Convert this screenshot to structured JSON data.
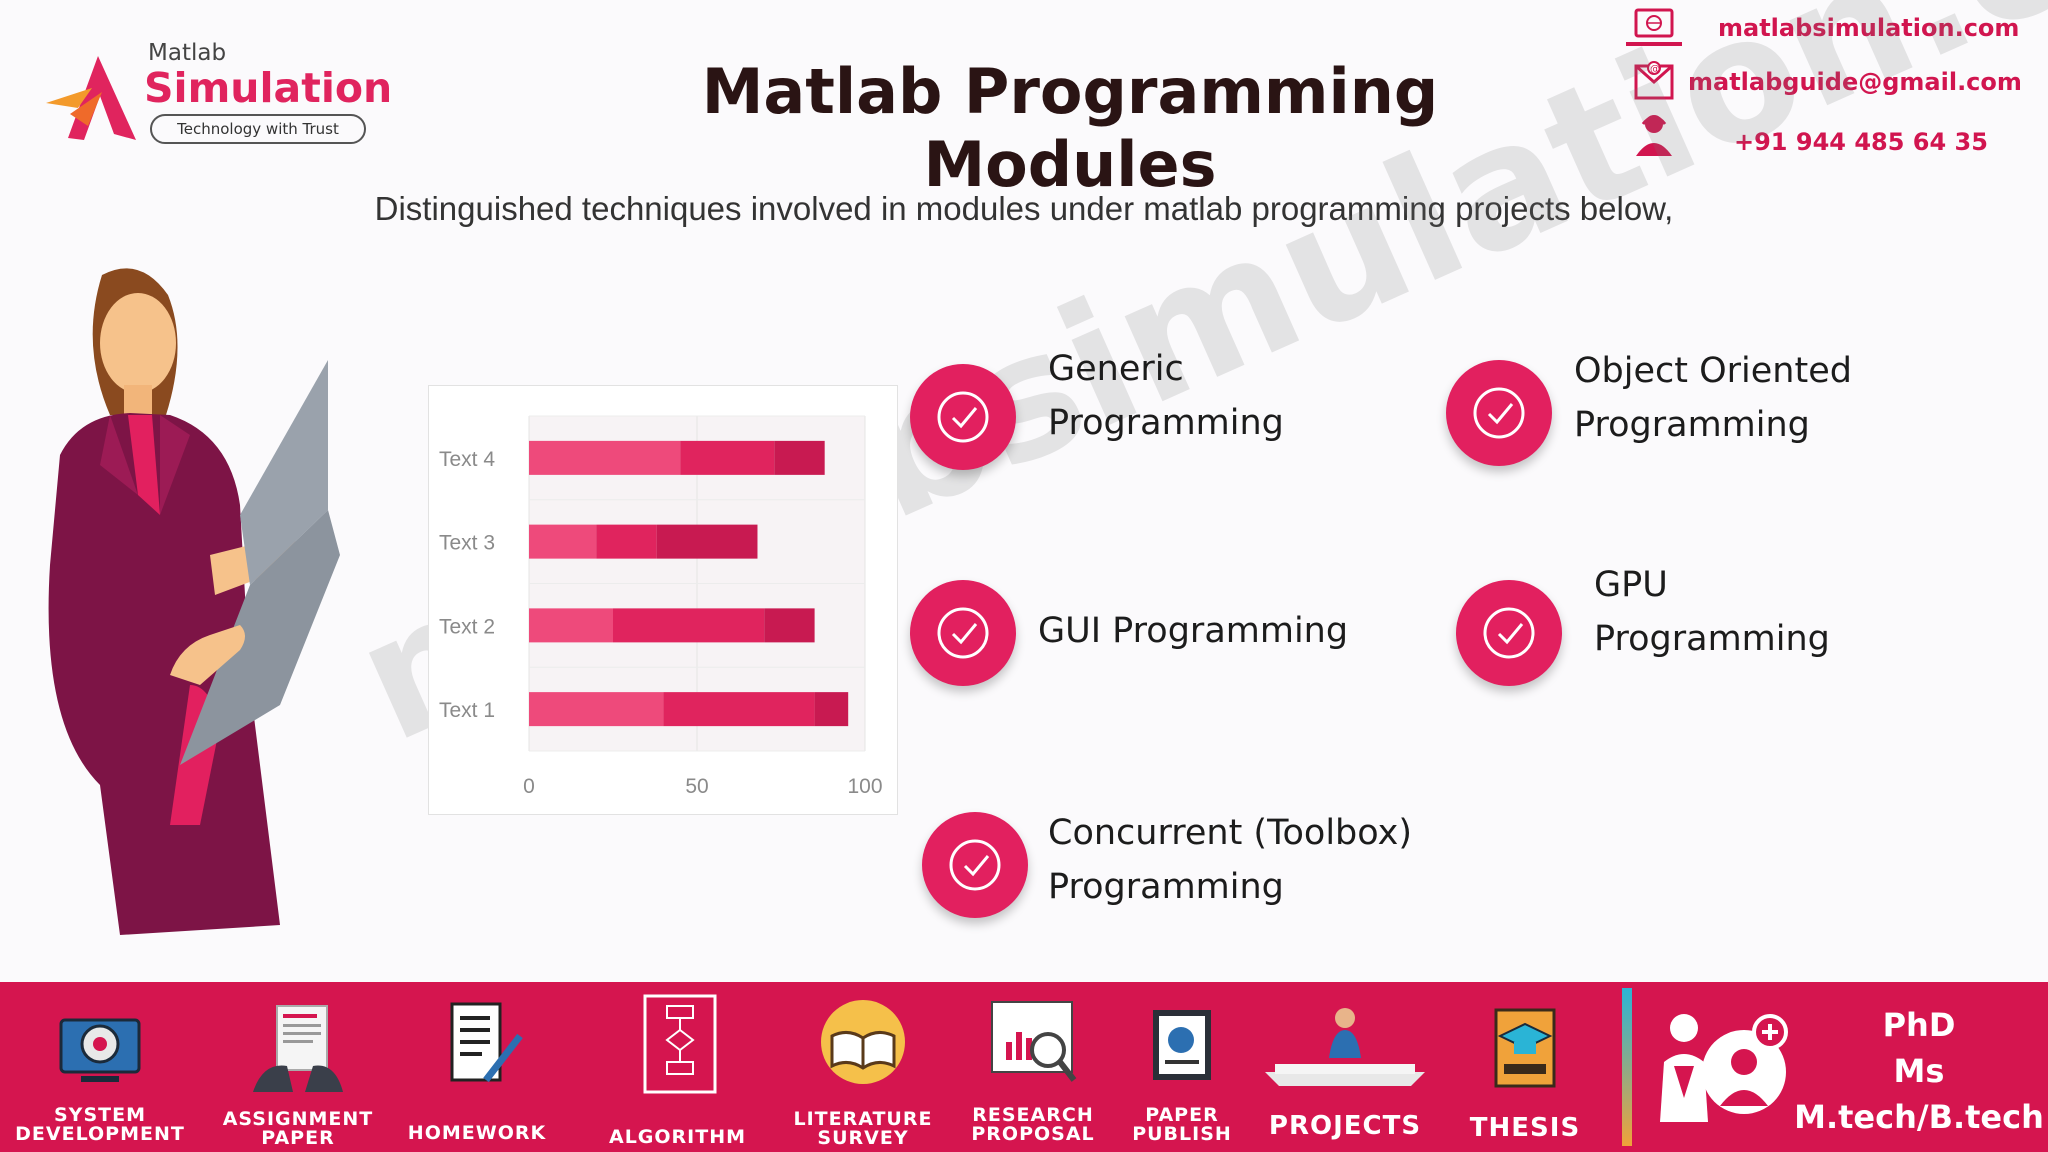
{
  "logo": {
    "small": "Matlab",
    "big": "Simulation",
    "tagline": "Technology with Trust"
  },
  "title": "Matlab Programming Modules",
  "contact": {
    "website": "matlabsimulation.com",
    "email": "matlabguide@gmail.com",
    "phone": "+91 944 485 64 35",
    "icons": [
      "monitor-icon",
      "email-icon",
      "support-agent-icon"
    ]
  },
  "subtitle": "Distinguished techniques involved in modules under matlab programming projects below,",
  "watermark": "matlabsimulation.com",
  "colors": {
    "accent": "#d5154f",
    "bar_light": "#ee4a7b",
    "bar_mid": "#e0245e",
    "bar_dark": "#c81a51"
  },
  "chart_data": {
    "type": "bar",
    "orientation": "horizontal",
    "stacked": true,
    "categories": [
      "Text 1",
      "Text 2",
      "Text 3",
      "Text 4"
    ],
    "series": [
      {
        "values": [
          40,
          25,
          20,
          45
        ]
      },
      {
        "values": [
          45,
          45,
          18,
          28
        ]
      },
      {
        "values": [
          10,
          15,
          30,
          15
        ]
      }
    ],
    "xlim": [
      0,
      100
    ],
    "xticks": [
      "0",
      "50",
      "100"
    ],
    "grid": true
  },
  "modules": [
    {
      "lines": [
        "Generic",
        "Programming"
      ]
    },
    {
      "lines": [
        "Object Oriented",
        "Programming"
      ]
    },
    {
      "lines": [
        "GUI Programming"
      ]
    },
    {
      "lines": [
        "GPU",
        "Programming"
      ]
    },
    {
      "lines": [
        "Concurrent (Toolbox)",
        "Programming"
      ]
    }
  ],
  "bottom_bar": {
    "items": [
      {
        "lines": [
          "SYSTEM",
          "DEVELOPMENT"
        ],
        "icon": "system-development-icon"
      },
      {
        "lines": [
          "ASSIGNMENT",
          "PAPER"
        ],
        "icon": "assignment-paper-icon"
      },
      {
        "lines": [
          "HOMEWORK"
        ],
        "icon": "homework-icon"
      },
      {
        "lines": [
          "ALGORITHM"
        ],
        "icon": "algorithm-icon"
      },
      {
        "lines": [
          "LITERATURE",
          "SURVEY"
        ],
        "icon": "literature-survey-icon"
      },
      {
        "lines": [
          "RESEARCH",
          "PROPOSAL"
        ],
        "icon": "research-proposal-icon"
      },
      {
        "lines": [
          "PAPER",
          "PUBLISH"
        ],
        "icon": "paper-publish-icon"
      },
      {
        "lines": [
          "PROJECTS"
        ],
        "icon": "projects-icon"
      },
      {
        "lines": [
          "THESIS"
        ],
        "icon": "thesis-icon"
      }
    ],
    "degrees": [
      "PhD",
      "Ms",
      "M.tech/B.tech"
    ]
  }
}
